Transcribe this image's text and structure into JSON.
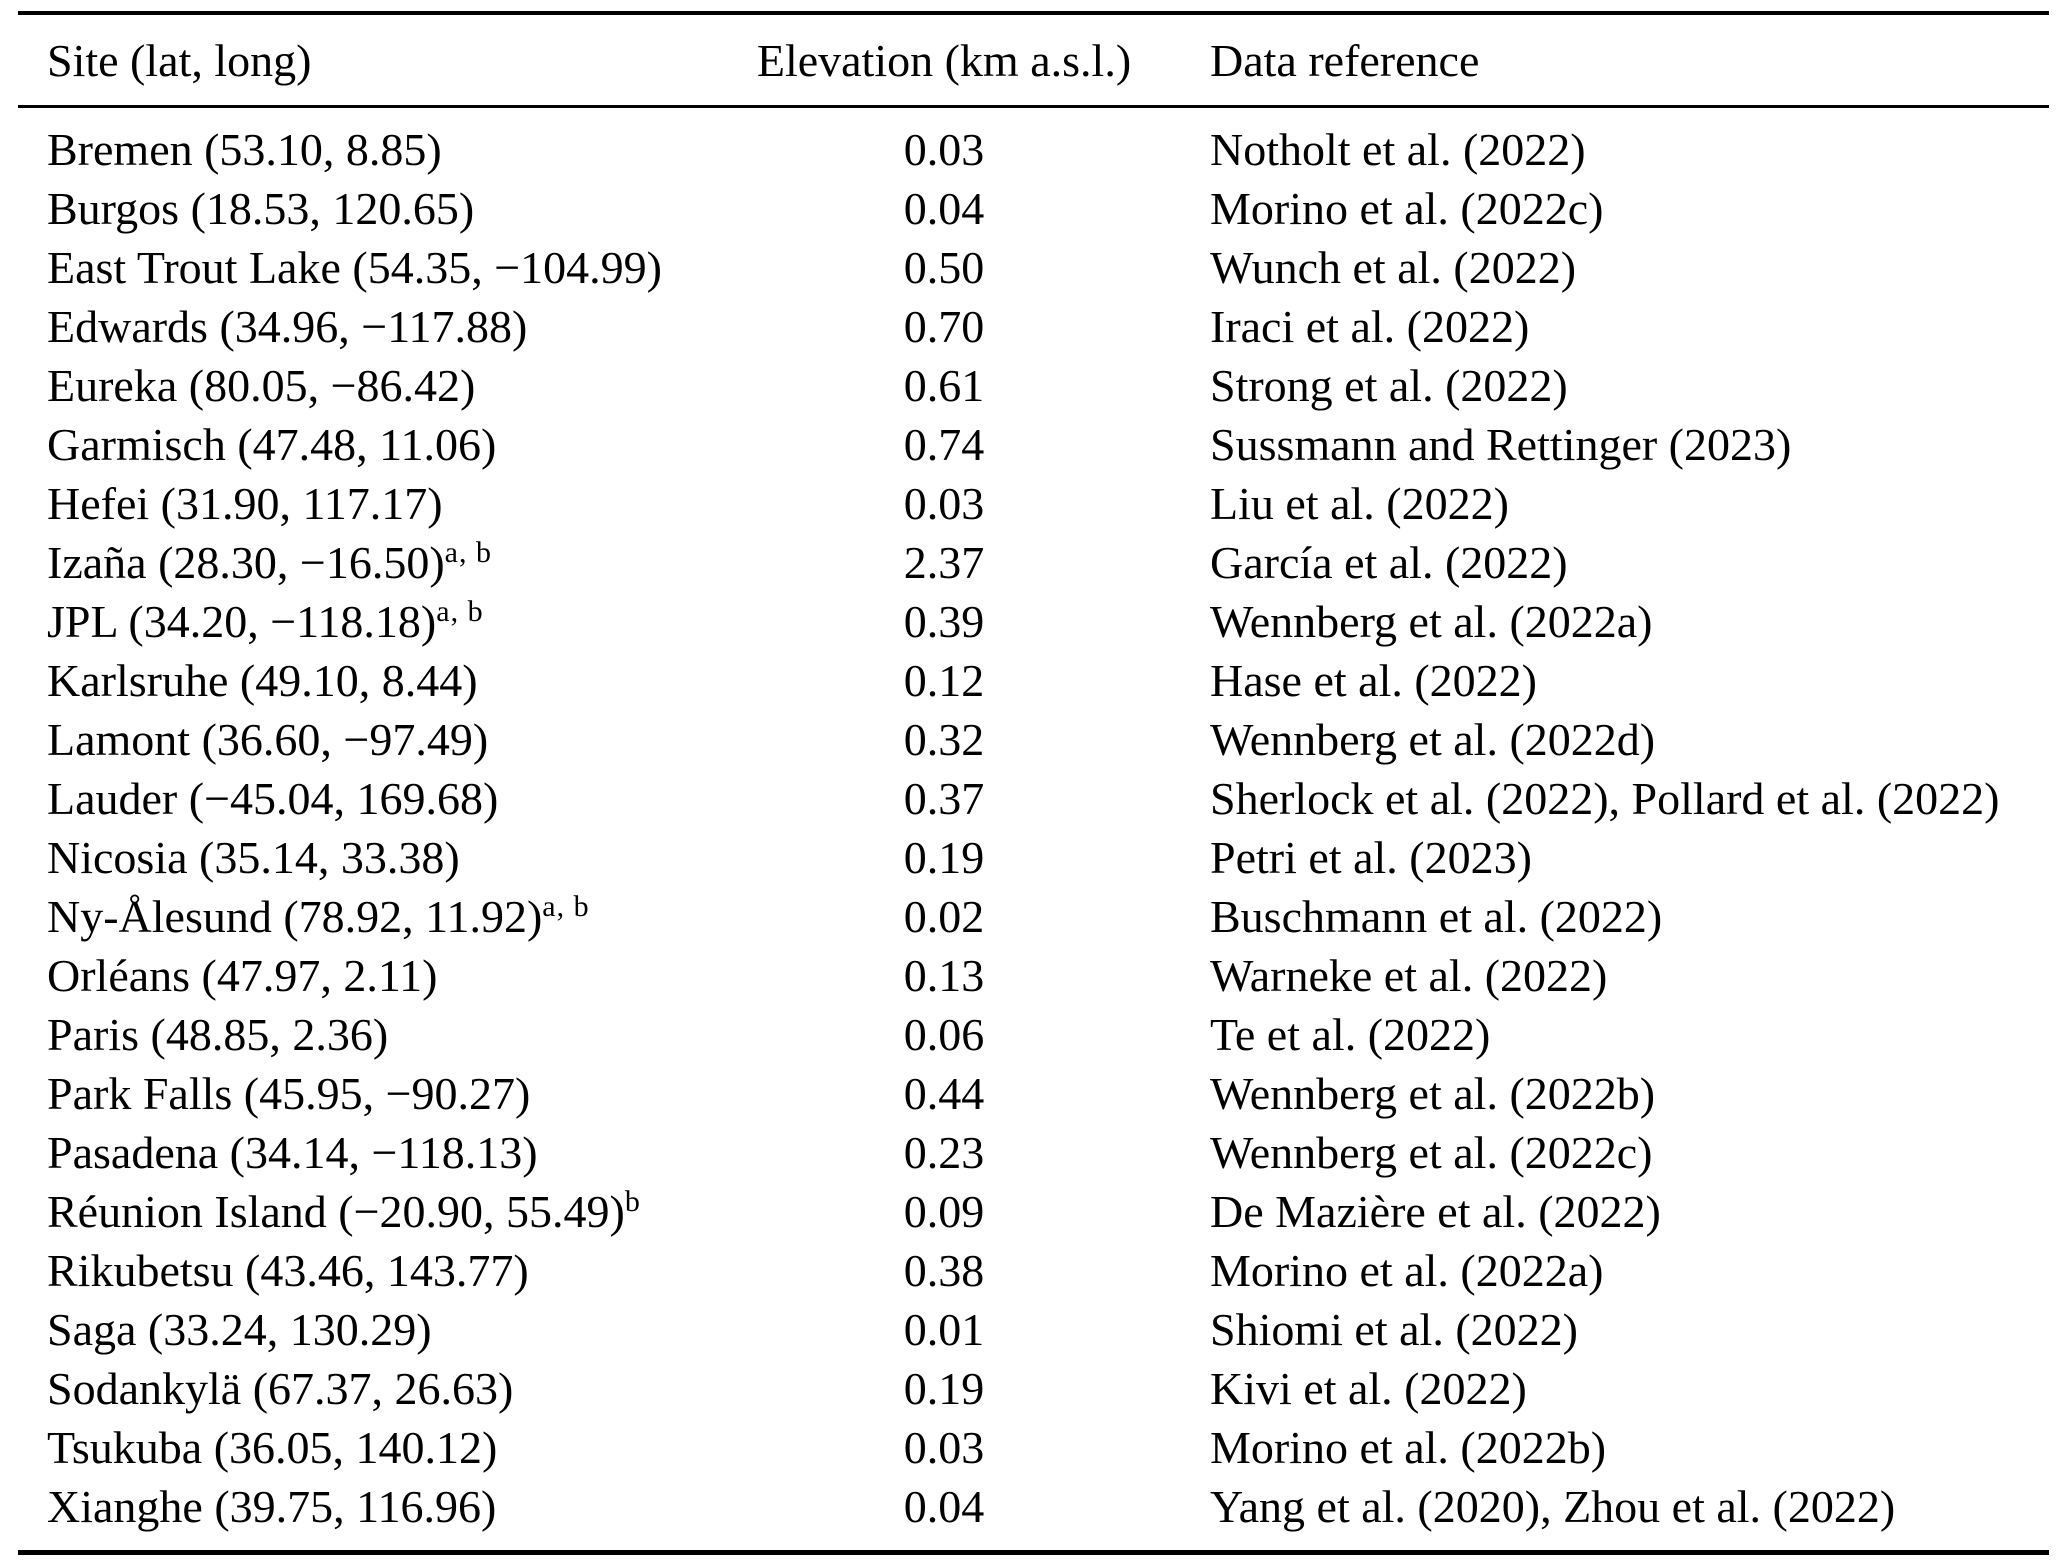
{
  "table": {
    "columns": [
      "Site (lat, long)",
      "Elevation (km a.s.l.)",
      "Data reference"
    ],
    "rows": [
      {
        "site": "Bremen (53.10, 8.85)",
        "sup": "",
        "elevation": "0.03",
        "reference": "Notholt et al. (2022)"
      },
      {
        "site": "Burgos (18.53, 120.65)",
        "sup": "",
        "elevation": "0.04",
        "reference": "Morino et al. (2022c)"
      },
      {
        "site": "East Trout Lake (54.35, −104.99)",
        "sup": "",
        "elevation": "0.50",
        "reference": "Wunch et al. (2022)"
      },
      {
        "site": "Edwards (34.96, −117.88)",
        "sup": "",
        "elevation": "0.70",
        "reference": "Iraci et al. (2022)"
      },
      {
        "site": "Eureka (80.05, −86.42)",
        "sup": "",
        "elevation": "0.61",
        "reference": "Strong et al. (2022)"
      },
      {
        "site": "Garmisch (47.48, 11.06)",
        "sup": "",
        "elevation": "0.74",
        "reference": "Sussmann and Rettinger (2023)"
      },
      {
        "site": "Hefei (31.90, 117.17)",
        "sup": "",
        "elevation": "0.03",
        "reference": "Liu et al. (2022)"
      },
      {
        "site": "Izaña (28.30, −16.50)",
        "sup": "a, b",
        "elevation": "2.37",
        "reference": "García et al. (2022)"
      },
      {
        "site": "JPL (34.20, −118.18)",
        "sup": "a, b",
        "elevation": "0.39",
        "reference": "Wennberg et al. (2022a)"
      },
      {
        "site": "Karlsruhe (49.10, 8.44)",
        "sup": "",
        "elevation": "0.12",
        "reference": "Hase et al. (2022)"
      },
      {
        "site": "Lamont (36.60, −97.49)",
        "sup": "",
        "elevation": "0.32",
        "reference": "Wennberg et al. (2022d)"
      },
      {
        "site": "Lauder (−45.04, 169.68)",
        "sup": "",
        "elevation": "0.37",
        "reference": "Sherlock et al. (2022), Pollard et al. (2022)"
      },
      {
        "site": "Nicosia (35.14, 33.38)",
        "sup": "",
        "elevation": "0.19",
        "reference": "Petri et al. (2023)"
      },
      {
        "site": "Ny-Ålesund (78.92, 11.92)",
        "sup": "a, b",
        "elevation": "0.02",
        "reference": "Buschmann et al. (2022)"
      },
      {
        "site": "Orléans (47.97, 2.11)",
        "sup": "",
        "elevation": "0.13",
        "reference": "Warneke et al. (2022)"
      },
      {
        "site": "Paris (48.85, 2.36)",
        "sup": "",
        "elevation": "0.06",
        "reference": "Te et al. (2022)"
      },
      {
        "site": "Park Falls (45.95, −90.27)",
        "sup": "",
        "elevation": "0.44",
        "reference": "Wennberg et al. (2022b)"
      },
      {
        "site": "Pasadena (34.14, −118.13)",
        "sup": "",
        "elevation": "0.23",
        "reference": "Wennberg et al. (2022c)"
      },
      {
        "site": "Réunion Island (−20.90, 55.49)",
        "sup": "b",
        "elevation": "0.09",
        "reference": "De Mazière et al. (2022)"
      },
      {
        "site": "Rikubetsu (43.46, 143.77)",
        "sup": "",
        "elevation": "0.38",
        "reference": "Morino et al. (2022a)"
      },
      {
        "site": "Saga (33.24, 130.29)",
        "sup": "",
        "elevation": "0.01",
        "reference": "Shiomi et al. (2022)"
      },
      {
        "site": "Sodankylä (67.37, 26.63)",
        "sup": "",
        "elevation": "0.19",
        "reference": "Kivi et al. (2022)"
      },
      {
        "site": "Tsukuba (36.05, 140.12)",
        "sup": "",
        "elevation": "0.03",
        "reference": "Morino et al. (2022b)"
      },
      {
        "site": "Xianghe (39.75, 116.96)",
        "sup": "",
        "elevation": "0.04",
        "reference": "Yang et al. (2020), Zhou et al. (2022)"
      }
    ]
  }
}
